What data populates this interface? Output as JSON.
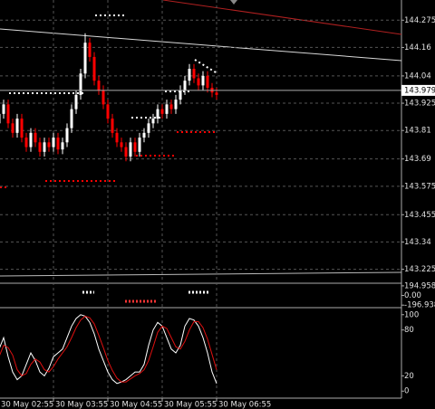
{
  "chart_data": [
    {
      "type": "candlestick",
      "categories": [
        "30 May 02:55",
        null,
        null,
        null,
        null,
        null,
        null,
        null,
        null,
        null,
        null,
        null,
        "30 May 03:55",
        null,
        null,
        null,
        null,
        null,
        null,
        null,
        null,
        null,
        null,
        null,
        "30 May 04:55",
        null,
        null,
        null,
        null,
        null,
        null,
        null,
        null,
        null,
        null,
        null,
        "30 May 05:55",
        null,
        null,
        null,
        null,
        null,
        null,
        null,
        null,
        null,
        null,
        null,
        "30 May 06:55"
      ],
      "open": [
        143.84,
        143.88,
        143.92,
        143.84,
        143.8,
        143.86,
        143.78,
        143.74,
        143.8,
        143.76,
        143.72,
        143.76,
        143.74,
        143.78,
        143.73,
        143.76,
        143.82,
        143.9,
        143.96,
        144.05,
        144.18,
        144.12,
        144.02,
        143.98,
        143.92,
        143.86,
        143.8,
        143.76,
        143.74,
        143.7,
        143.76,
        143.72,
        143.78,
        143.8,
        143.84,
        143.86,
        143.9,
        143.88,
        143.92,
        143.9,
        143.94,
        143.98,
        144.02,
        144.07,
        144.03,
        144.0,
        144.04,
        143.99,
        143.97
      ],
      "high": [
        143.9,
        143.94,
        143.94,
        143.86,
        143.88,
        143.88,
        143.8,
        143.82,
        143.82,
        143.78,
        143.78,
        143.78,
        143.8,
        143.8,
        143.78,
        143.84,
        143.92,
        143.98,
        144.07,
        144.22,
        144.2,
        144.14,
        144.04,
        144.0,
        143.94,
        143.88,
        143.82,
        143.78,
        143.76,
        143.78,
        143.78,
        143.8,
        143.82,
        143.86,
        143.88,
        143.92,
        143.92,
        143.94,
        143.94,
        143.96,
        144.0,
        144.04,
        144.09,
        144.09,
        144.05,
        144.06,
        144.06,
        144.01,
        143.99
      ],
      "low": [
        143.82,
        143.86,
        143.82,
        143.78,
        143.78,
        143.76,
        143.72,
        143.72,
        143.74,
        143.7,
        143.7,
        143.72,
        143.72,
        143.71,
        143.71,
        143.74,
        143.8,
        143.88,
        143.94,
        144.03,
        144.1,
        144.0,
        143.96,
        143.9,
        143.84,
        143.78,
        143.74,
        143.72,
        143.68,
        143.68,
        143.7,
        143.7,
        143.76,
        143.78,
        143.82,
        143.84,
        143.86,
        143.86,
        143.88,
        143.88,
        143.92,
        143.96,
        144.0,
        144.01,
        143.98,
        143.98,
        143.97,
        143.95,
        143.94
      ],
      "close": [
        143.88,
        143.92,
        143.84,
        143.8,
        143.86,
        143.78,
        143.74,
        143.8,
        143.76,
        143.72,
        143.76,
        143.74,
        143.78,
        143.73,
        143.76,
        143.82,
        143.9,
        143.96,
        144.05,
        144.18,
        144.12,
        144.02,
        143.98,
        143.92,
        143.86,
        143.8,
        143.76,
        143.74,
        143.7,
        143.76,
        143.72,
        143.78,
        143.8,
        143.84,
        143.86,
        143.9,
        143.88,
        143.92,
        143.9,
        143.94,
        143.98,
        144.02,
        144.07,
        144.03,
        144.0,
        144.04,
        143.99,
        143.97,
        143.96
      ],
      "up_color": "#ffffff",
      "down_color": "#ff0000",
      "last_price": 143.979,
      "ylim": [
        143.17,
        144.36
      ],
      "yticks": [
        144.275,
        144.16,
        144.04,
        143.925,
        143.81,
        143.69,
        143.575,
        143.455,
        143.34,
        143.225
      ],
      "grid": true
    },
    {
      "type": "indicator",
      "ylim": [
        -230,
        230
      ],
      "yticks": [
        194.958,
        {
          "value": 0,
          "label": "0.00"
        },
        -196.938
      ]
    },
    {
      "type": "line",
      "ylim": [
        -8,
        108
      ],
      "yticks": [
        100,
        80,
        20,
        0
      ],
      "series": [
        {
          "color": "#ffffff",
          "values": [
            55,
            70,
            45,
            25,
            15,
            20,
            35,
            50,
            40,
            25,
            20,
            30,
            45,
            50,
            55,
            70,
            85,
            95,
            100,
            98,
            90,
            75,
            55,
            40,
            25,
            15,
            10,
            12,
            15,
            20,
            25,
            25,
            35,
            60,
            80,
            90,
            85,
            70,
            55,
            50,
            60,
            85,
            95,
            93,
            85,
            70,
            50,
            25,
            10
          ]
        },
        {
          "color": "#e01010",
          "values": [
            45,
            60,
            57,
            47,
            28,
            20,
            23,
            35,
            42,
            38,
            28,
            25,
            32,
            42,
            50,
            58,
            70,
            83,
            93,
            98,
            96,
            88,
            73,
            57,
            40,
            27,
            17,
            12,
            12,
            16,
            20,
            23,
            28,
            40,
            58,
            77,
            85,
            82,
            70,
            58,
            55,
            65,
            80,
            91,
            91,
            83,
            68,
            48,
            28
          ]
        }
      ]
    }
  ]
}
